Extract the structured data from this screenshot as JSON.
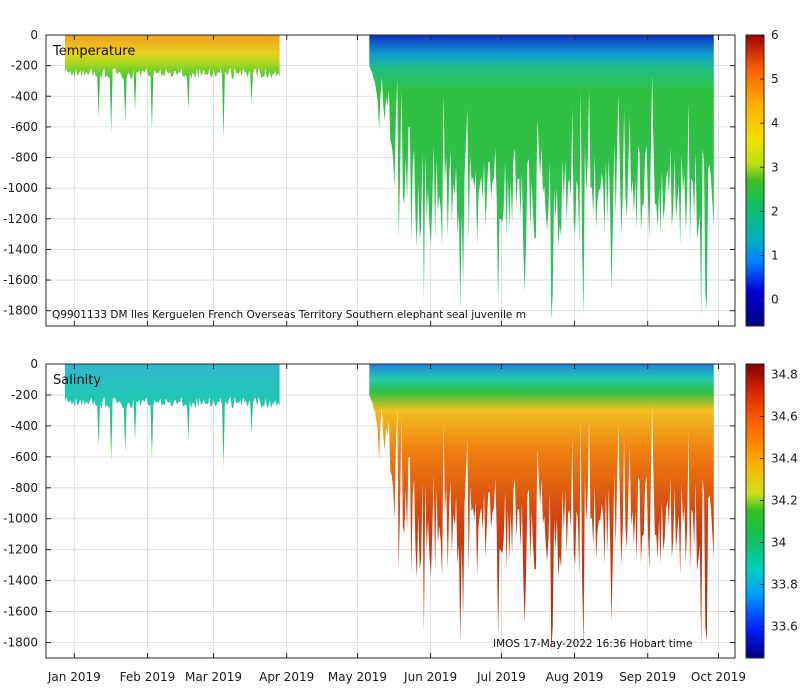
{
  "chart_data": [
    {
      "type": "heatmap",
      "title": "Temperature",
      "variable": "Temperature",
      "ylim": [
        -1900,
        0
      ],
      "yticks": [
        0,
        -200,
        -400,
        -600,
        -800,
        -1000,
        -1200,
        -1400,
        -1600,
        -1800
      ],
      "colorbar": {
        "min": -0.6,
        "max": 6,
        "ticks": [
          0,
          1,
          2,
          3,
          4,
          5,
          6
        ]
      },
      "annotation": "Q9901133 DM Iles Kerguelen French Overseas Territory Southern elephant seal juvenile m",
      "deployments": [
        {
          "start": "2018-12-28",
          "end": "2019-03-29",
          "typical_max_depth": 250,
          "deepest_dive": 690
        },
        {
          "start": "2019-05-06",
          "end": "2019-09-29",
          "typical_max_depth": 1000,
          "deepest_dive": 1790
        }
      ]
    },
    {
      "type": "heatmap",
      "title": "Salinity",
      "variable": "Salinity",
      "ylim": [
        -1900,
        0
      ],
      "yticks": [
        0,
        -200,
        -400,
        -600,
        -800,
        -1000,
        -1200,
        -1400,
        -1600,
        -1800
      ],
      "colorbar": {
        "min": 33.45,
        "max": 34.85,
        "ticks": [
          33.6,
          33.8,
          34,
          34.2,
          34.4,
          34.6,
          34.8
        ]
      },
      "annotation": "IMOS 17-May-2022 16:36 Hobart time",
      "deployments": [
        {
          "start": "2018-12-28",
          "end": "2019-03-29",
          "typical_max_depth": 250,
          "deepest_dive": 690
        },
        {
          "start": "2019-05-06",
          "end": "2019-09-29",
          "typical_max_depth": 1000,
          "deepest_dive": 1790
        }
      ]
    }
  ],
  "xaxis": {
    "type": "time",
    "start": "2018-12-20",
    "end": "2019-10-08",
    "tick_labels": [
      "Jan 2019",
      "Feb 2019",
      "Mar 2019",
      "Apr 2019",
      "May 2019",
      "Jun 2019",
      "Jul 2019",
      "Aug 2019",
      "Sep 2019",
      "Oct 2019"
    ],
    "tick_dates": [
      "2019-01-01",
      "2019-02-01",
      "2019-03-01",
      "2019-04-01",
      "2019-05-01",
      "2019-06-01",
      "2019-07-01",
      "2019-08-01",
      "2019-09-01",
      "2019-10-01"
    ]
  }
}
